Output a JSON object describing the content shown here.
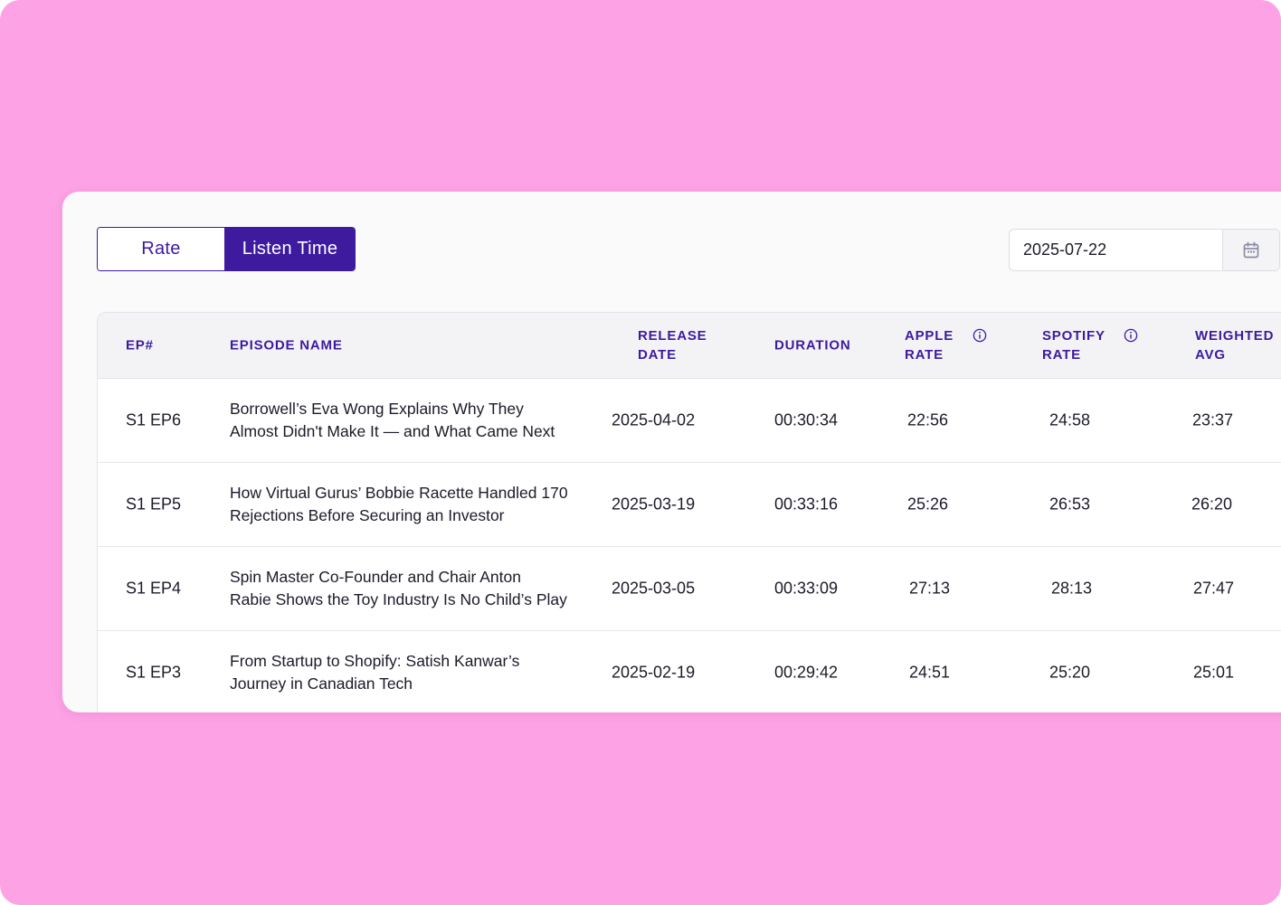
{
  "toggle": {
    "rate_label": "Rate",
    "listen_time_label": "Listen Time",
    "active": "Listen Time"
  },
  "date_picker": {
    "value": "2025-07-22",
    "icon": "calendar-icon"
  },
  "table": {
    "headers": {
      "ep": "EP#",
      "episode_name": "EPISODE NAME",
      "release_date_1": "RELEASE",
      "release_date_2": "DATE",
      "duration": "DURATION",
      "apple_rate_1": "APPLE",
      "apple_rate_2": "RATE",
      "spotify_rate_1": "SPOTIFY",
      "spotify_rate_2": "RATE",
      "weighted_avg_1": "WEIGHTED",
      "weighted_avg_2": "AVG"
    },
    "rows": [
      {
        "ep": "S1 EP6",
        "name_line1": "Borrowell’s Eva Wong Explains Why They",
        "name_line2": "Almost Didn't Make It — and What Came Next",
        "release_date": "2025-04-02",
        "duration": "00:30:34",
        "apple_rate": "22:56",
        "spotify_rate": "24:58",
        "weighted_avg": "23:37"
      },
      {
        "ep": "S1 EP5",
        "name_line1": "How Virtual Gurus’ Bobbie Racette Handled 170",
        "name_line2": "Rejections Before Securing an Investor",
        "release_date": "2025-03-19",
        "duration": "00:33:16",
        "apple_rate": "25:26",
        "spotify_rate": "26:53",
        "weighted_avg": "26:20"
      },
      {
        "ep": "S1 EP4",
        "name_line1": "Spin Master Co-Founder and Chair Anton",
        "name_line2": "Rabie Shows the Toy Industry Is No Child’s Play",
        "release_date": "2025-03-05",
        "duration": "00:33:09",
        "apple_rate": "27:13",
        "spotify_rate": "28:13",
        "weighted_avg": "27:47"
      },
      {
        "ep": "S1 EP3",
        "name_line1": "From Startup to Shopify: Satish Kanwar’s",
        "name_line2": "Journey in Canadian Tech",
        "release_date": "2025-02-19",
        "duration": "00:29:42",
        "apple_rate": "24:51",
        "spotify_rate": "25:20",
        "weighted_avg": "25:01"
      }
    ]
  },
  "colors": {
    "background": "#fda2e5",
    "accent": "#3d1a9e"
  }
}
